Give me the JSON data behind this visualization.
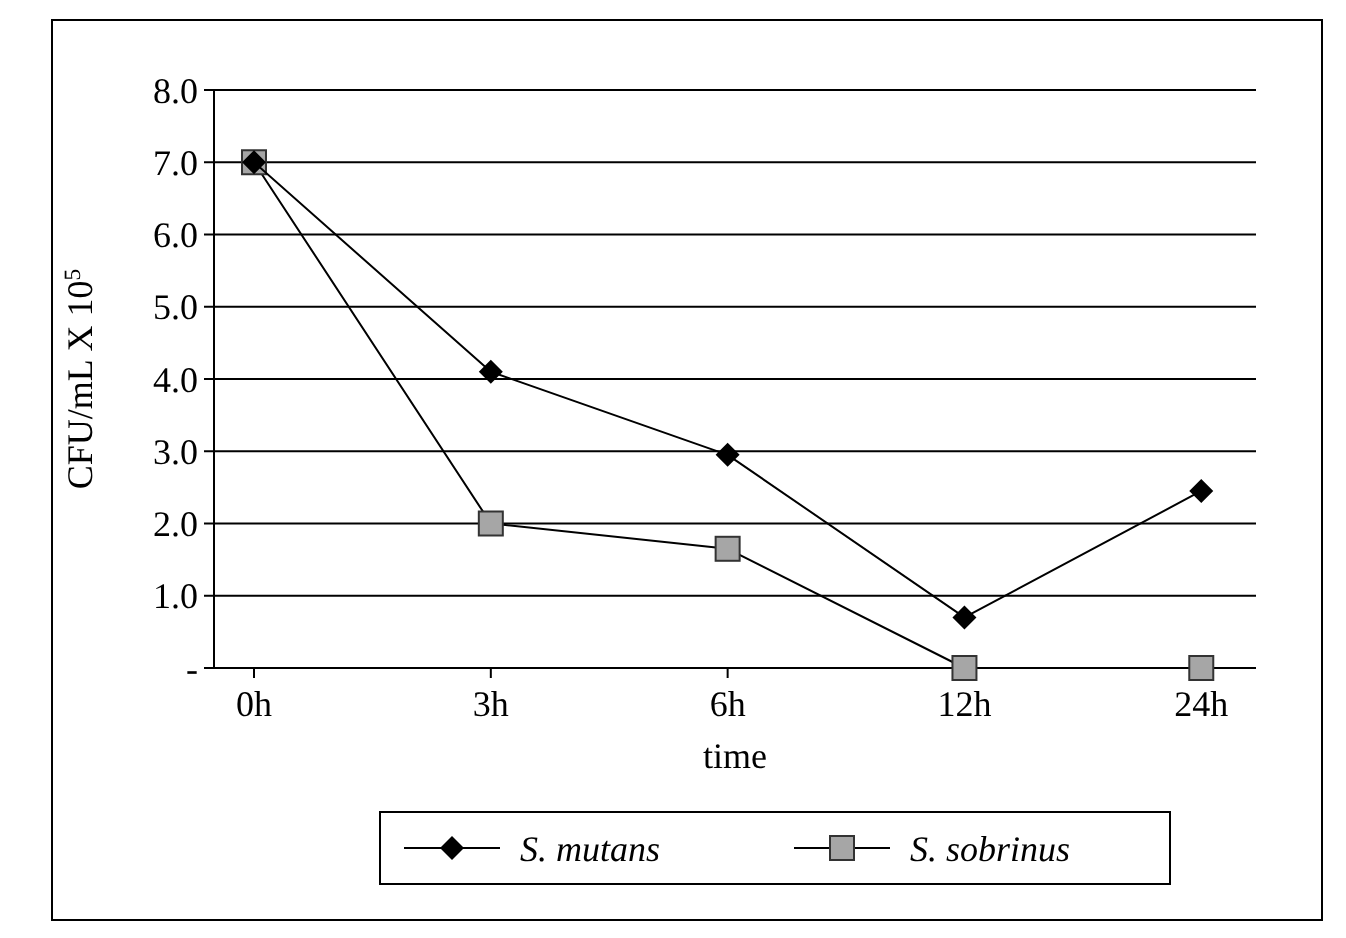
{
  "chart_data": {
    "type": "line",
    "xlabel": "time",
    "ylabel": "CFU/mL X 10$^{5}$",
    "categories": [
      "0h",
      "3h",
      "6h",
      "12h",
      "24h"
    ],
    "series": [
      {
        "name": "S. mutans",
        "color": "#000000",
        "marker": "diamond",
        "values": [
          7.0,
          4.1,
          2.95,
          0.7,
          2.45
        ]
      },
      {
        "name": "S. sobrinus",
        "color": "#a6a6a6",
        "marker": "square",
        "values": [
          7.0,
          2.0,
          1.65,
          0,
          0
        ]
      }
    ],
    "ylim": [
      0,
      8
    ],
    "yticks": [
      {
        "value": 0,
        "label": "-"
      },
      {
        "value": 1,
        "label": "1.0"
      },
      {
        "value": 2,
        "label": "2.0"
      },
      {
        "value": 3,
        "label": "3.0"
      },
      {
        "value": 4,
        "label": "4.0"
      },
      {
        "value": 5,
        "label": "5.0"
      },
      {
        "value": 6,
        "label": "6.0"
      },
      {
        "value": 7,
        "label": "7.0"
      },
      {
        "value": 8,
        "label": "8.0"
      }
    ],
    "grid": "y",
    "legend": "bottom"
  }
}
